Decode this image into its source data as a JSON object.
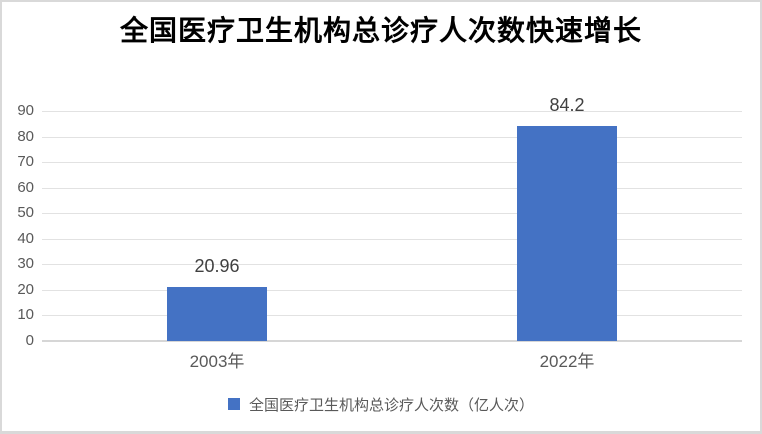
{
  "chart_data": {
    "type": "bar",
    "title": "全国医疗卫生机构总诊疗人次数快速增长",
    "categories": [
      "2003年",
      "2022年"
    ],
    "series": [
      {
        "name": "全国医疗卫生机构总诊疗人次数（亿人次）",
        "values": [
          20.96,
          84.2
        ]
      }
    ],
    "data_labels": [
      "20.96",
      "84.2"
    ],
    "xlabel": "",
    "ylabel": "",
    "ylim": [
      0,
      90
    ],
    "yticks": [
      0,
      10,
      20,
      30,
      40,
      50,
      60,
      70,
      80,
      90
    ],
    "grid": true,
    "legend_position": "bottom",
    "colors": {
      "bar": "#4472C4",
      "title_text": "#000000",
      "data_label_text": "#404040",
      "tick_label_text": "#595959",
      "gridline": "#E2E2E2",
      "axis_line": "#D6D6D6",
      "legend_text": "#595959",
      "frame_border": "#D9D9D9",
      "background": "#FFFFFF"
    }
  }
}
